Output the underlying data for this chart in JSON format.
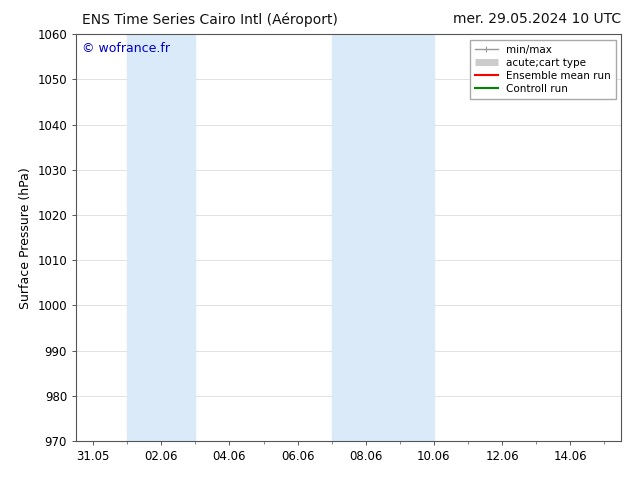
{
  "title_left": "ENS Time Series Cairo Intl (Aéroport)",
  "title_right": "mer. 29.05.2024 10 UTC",
  "ylabel": "Surface Pressure (hPa)",
  "ylim": [
    970,
    1060
  ],
  "yticks": [
    970,
    980,
    990,
    1000,
    1010,
    1020,
    1030,
    1040,
    1050,
    1060
  ],
  "xtick_labels": [
    "31.05",
    "02.06",
    "04.06",
    "06.06",
    "08.06",
    "10.06",
    "12.06",
    "14.06"
  ],
  "xtick_positions": [
    0,
    2,
    4,
    6,
    8,
    10,
    12,
    14
  ],
  "xlim": [
    -0.5,
    15.5
  ],
  "watermark": "© wofrance.fr",
  "watermark_color": "#0000cc",
  "bg_color": "#ffffff",
  "plot_bg_color": "#ffffff",
  "shaded_bands": [
    {
      "xmin": 1.0,
      "xmax": 3.0,
      "color": "#daeaf8"
    },
    {
      "xmin": 7.0,
      "xmax": 10.0,
      "color": "#daeaf8"
    }
  ],
  "legend_items": [
    {
      "label": "min/max",
      "color": "#999999",
      "lw": 1.0,
      "style": "line_with_caps"
    },
    {
      "label": "acute;cart type",
      "color": "#cccccc",
      "lw": 5,
      "style": "thick"
    },
    {
      "label": "Ensemble mean run",
      "color": "#ff0000",
      "lw": 1.5,
      "style": "line"
    },
    {
      "label": "Controll run",
      "color": "#008800",
      "lw": 1.5,
      "style": "line"
    }
  ],
  "grid_color": "#dddddd",
  "title_fontsize": 10,
  "label_fontsize": 9,
  "tick_fontsize": 8.5,
  "legend_fontsize": 7.5
}
